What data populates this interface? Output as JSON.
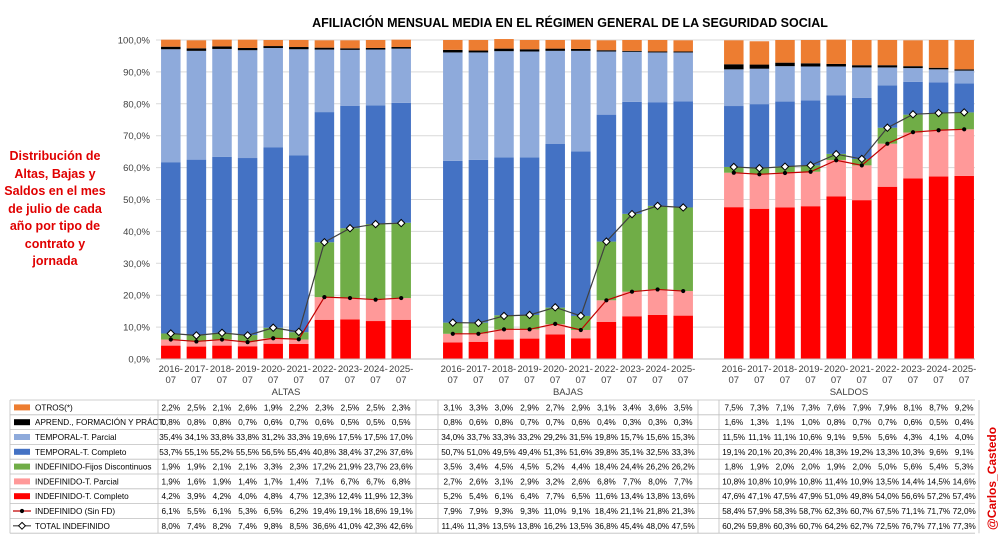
{
  "side_note": "Distribución de Altas, Bajas y Saldos en el mes de julio de cada año por tipo de contrato y jornada",
  "credit": "@Carlos_Castedo",
  "chart_data": {
    "type": "bar",
    "stacked": true,
    "percent_stacked": true,
    "title": "AFILIACIÓN MENSUAL MEDIA EN EL RÉGIMEN GENERAL DE LA SEGURIDAD SOCIAL",
    "ylim": [
      0,
      100
    ],
    "yticks": [
      "0,0%",
      "10,0%",
      "20,0%",
      "30,0%",
      "40,0%",
      "50,0%",
      "60,0%",
      "70,0%",
      "80,0%",
      "90,0%",
      "100,0%"
    ],
    "grid": true,
    "legend_position": "table-left",
    "groups": [
      "ALTAS",
      "BAJAS",
      "SALDOS"
    ],
    "categories": [
      "2016-07",
      "2017-07",
      "2018-07",
      "2019-07",
      "2020-07",
      "2021-07",
      "2022-07",
      "2023-07",
      "2024-07",
      "2025-07"
    ],
    "stack_series": [
      {
        "key": "completo",
        "name": "INDEFINIDO-T. Completo",
        "color": "#ff0000",
        "values": [
          [
            4.2,
            3.9,
            4.2,
            4.0,
            4.8,
            4.7,
            12.3,
            12.4,
            11.9,
            12.3
          ],
          [
            5.2,
            5.4,
            6.1,
            6.4,
            7.7,
            6.5,
            11.6,
            13.4,
            13.8,
            13.6
          ],
          [
            47.6,
            47.1,
            47.5,
            47.9,
            51.0,
            49.8,
            54.0,
            56.6,
            57.2,
            57.4
          ]
        ]
      },
      {
        "key": "parcial",
        "name": "INDEFINIDO-T. Parcial",
        "color": "#ff9999",
        "values": [
          [
            1.9,
            1.6,
            1.9,
            1.4,
            1.7,
            1.4,
            7.1,
            6.7,
            6.7,
            6.8
          ],
          [
            2.7,
            2.6,
            3.1,
            2.9,
            3.2,
            2.6,
            6.8,
            7.7,
            8.0,
            7.7
          ],
          [
            10.8,
            10.8,
            10.9,
            10.8,
            11.4,
            10.9,
            13.5,
            14.4,
            14.5,
            14.6
          ]
        ]
      },
      {
        "key": "fijos",
        "name": "INDEFINIDO-Fijos Discontinuos",
        "color": "#70ad47",
        "values": [
          [
            1.9,
            1.9,
            2.1,
            2.1,
            3.3,
            2.3,
            17.2,
            21.9,
            23.7,
            23.6
          ],
          [
            3.5,
            3.4,
            4.5,
            4.5,
            5.2,
            4.4,
            18.4,
            24.4,
            26.2,
            26.2
          ],
          [
            1.8,
            1.9,
            2.0,
            2.0,
            1.9,
            2.0,
            5.0,
            5.6,
            5.4,
            5.3
          ]
        ]
      },
      {
        "key": "tcompleto",
        "name": "TEMPORAL-T. Completo",
        "color": "#4472c4",
        "values": [
          [
            53.7,
            55.1,
            55.2,
            55.5,
            56.5,
            55.4,
            40.8,
            38.4,
            37.2,
            37.6
          ],
          [
            50.7,
            51.0,
            49.5,
            49.4,
            51.3,
            51.6,
            39.8,
            35.1,
            32.5,
            33.3
          ],
          [
            19.1,
            20.1,
            20.3,
            20.4,
            18.3,
            19.2,
            13.3,
            10.3,
            9.6,
            9.1
          ]
        ]
      },
      {
        "key": "tparcial",
        "name": "TEMPORAL-T. Parcial",
        "color": "#8eaadb",
        "values": [
          [
            35.4,
            34.1,
            33.8,
            33.8,
            31.2,
            33.3,
            19.6,
            17.5,
            17.5,
            17.0
          ],
          [
            34.0,
            33.7,
            33.3,
            33.2,
            29.2,
            31.5,
            19.8,
            15.7,
            15.6,
            15.3
          ],
          [
            11.5,
            11.1,
            11.1,
            10.6,
            9.1,
            9.5,
            5.6,
            4.3,
            4.1,
            4.0
          ]
        ]
      },
      {
        "key": "aprend",
        "name": "APREND., FORMACIÓN Y PRÁCT.",
        "color": "#000000",
        "values": [
          [
            0.8,
            0.8,
            0.8,
            0.7,
            0.6,
            0.7,
            0.6,
            0.5,
            0.5,
            0.5
          ],
          [
            0.8,
            0.6,
            0.8,
            0.7,
            0.7,
            0.6,
            0.4,
            0.3,
            0.3,
            0.3
          ],
          [
            1.6,
            1.3,
            1.1,
            1.0,
            0.8,
            0.7,
            0.7,
            0.6,
            0.5,
            0.4
          ]
        ]
      },
      {
        "key": "otros",
        "name": "OTROS(*)",
        "color": "#ed7d31",
        "values": [
          [
            2.2,
            2.5,
            2.1,
            2.6,
            1.9,
            2.2,
            2.3,
            2.5,
            2.5,
            2.3
          ],
          [
            3.1,
            3.3,
            3.0,
            2.9,
            2.7,
            2.9,
            3.1,
            3.4,
            3.6,
            3.5
          ],
          [
            7.5,
            7.3,
            7.1,
            7.3,
            7.6,
            7.9,
            7.9,
            8.1,
            8.7,
            9.2
          ]
        ]
      }
    ],
    "line_series": [
      {
        "key": "sinfd",
        "name": "INDEFINIDO (Sin FD)",
        "color": "#c00000",
        "values": [
          [
            6.1,
            5.5,
            6.1,
            5.3,
            6.5,
            6.2,
            19.4,
            19.1,
            18.6,
            19.1
          ],
          [
            7.9,
            7.9,
            9.3,
            9.3,
            11.0,
            9.1,
            18.4,
            21.1,
            21.8,
            21.3
          ],
          [
            58.4,
            57.9,
            58.3,
            58.7,
            62.3,
            60.7,
            67.5,
            71.1,
            71.7,
            72.0
          ]
        ]
      },
      {
        "key": "total",
        "name": "TOTAL INDEFINIDO",
        "color": "#404040",
        "values": [
          [
            8.0,
            7.4,
            8.2,
            7.4,
            9.8,
            8.5,
            36.6,
            41.0,
            42.3,
            42.6
          ],
          [
            11.4,
            11.3,
            13.5,
            13.8,
            16.2,
            13.5,
            36.8,
            45.4,
            48.0,
            47.5
          ],
          [
            60.2,
            59.8,
            60.3,
            60.7,
            64.2,
            62.7,
            72.5,
            76.7,
            77.1,
            77.3
          ]
        ]
      }
    ],
    "table_rows": [
      {
        "key": "otros",
        "label": "OTROS(*)",
        "marker": "bar",
        "cells": [
          [
            "2,2%",
            "2,5%",
            "2,1%",
            "2,6%",
            "1,9%",
            "2,2%",
            "2,3%",
            "2,5%",
            "2,5%",
            "2,3%"
          ],
          [
            "3,1%",
            "3,3%",
            "3,0%",
            "2,9%",
            "2,7%",
            "2,9%",
            "3,1%",
            "3,4%",
            "3,6%",
            "3,5%"
          ],
          [
            "7,5%",
            "7,3%",
            "7,1%",
            "7,3%",
            "7,6%",
            "7,9%",
            "7,9%",
            "8,1%",
            "8,7%",
            "9,2%"
          ]
        ]
      },
      {
        "key": "aprend",
        "label": "APREND., FORMACIÓN Y PRÁCT.",
        "marker": "bar",
        "cells": [
          [
            "0,8%",
            "0,8%",
            "0,8%",
            "0,7%",
            "0,6%",
            "0,7%",
            "0,6%",
            "0,5%",
            "0,5%",
            "0,5%"
          ],
          [
            "0,8%",
            "0,6%",
            "0,8%",
            "0,7%",
            "0,7%",
            "0,6%",
            "0,4%",
            "0,3%",
            "0,3%",
            "0,3%"
          ],
          [
            "1,6%",
            "1,3%",
            "1,1%",
            "1,0%",
            "0,8%",
            "0,7%",
            "0,7%",
            "0,6%",
            "0,5%",
            "0,4%"
          ]
        ]
      },
      {
        "key": "tparcial",
        "label": "TEMPORAL-T. Parcial",
        "marker": "bar",
        "cells": [
          [
            "35,4%",
            "34,1%",
            "33,8%",
            "33,8%",
            "31,2%",
            "33,3%",
            "19,6%",
            "17,5%",
            "17,5%",
            "17,0%"
          ],
          [
            "34,0%",
            "33,7%",
            "33,3%",
            "33,2%",
            "29,2%",
            "31,5%",
            "19,8%",
            "15,7%",
            "15,6%",
            "15,3%"
          ],
          [
            "11,5%",
            "11,1%",
            "11,1%",
            "10,6%",
            "9,1%",
            "9,5%",
            "5,6%",
            "4,3%",
            "4,1%",
            "4,0%"
          ]
        ]
      },
      {
        "key": "tcompleto",
        "label": "TEMPORAL-T. Completo",
        "marker": "bar",
        "cells": [
          [
            "53,7%",
            "55,1%",
            "55,2%",
            "55,5%",
            "56,5%",
            "55,4%",
            "40,8%",
            "38,4%",
            "37,2%",
            "37,6%"
          ],
          [
            "50,7%",
            "51,0%",
            "49,5%",
            "49,4%",
            "51,3%",
            "51,6%",
            "39,8%",
            "35,1%",
            "32,5%",
            "33,3%"
          ],
          [
            "19,1%",
            "20,1%",
            "20,3%",
            "20,4%",
            "18,3%",
            "19,2%",
            "13,3%",
            "10,3%",
            "9,6%",
            "9,1%"
          ]
        ]
      },
      {
        "key": "fijos",
        "label": "INDEFINIDO-Fijos Discontinuos",
        "marker": "bar",
        "cells": [
          [
            "1,9%",
            "1,9%",
            "2,1%",
            "2,1%",
            "3,3%",
            "2,3%",
            "17,2%",
            "21,9%",
            "23,7%",
            "23,6%"
          ],
          [
            "3,5%",
            "3,4%",
            "4,5%",
            "4,5%",
            "5,2%",
            "4,4%",
            "18,4%",
            "24,4%",
            "26,2%",
            "26,2%"
          ],
          [
            "1,8%",
            "1,9%",
            "2,0%",
            "2,0%",
            "1,9%",
            "2,0%",
            "5,0%",
            "5,6%",
            "5,4%",
            "5,3%"
          ]
        ]
      },
      {
        "key": "parcial",
        "label": "INDEFINIDO-T. Parcial",
        "marker": "bar",
        "cells": [
          [
            "1,9%",
            "1,6%",
            "1,9%",
            "1,4%",
            "1,7%",
            "1,4%",
            "7,1%",
            "6,7%",
            "6,7%",
            "6,8%"
          ],
          [
            "2,7%",
            "2,6%",
            "3,1%",
            "2,9%",
            "3,2%",
            "2,6%",
            "6,8%",
            "7,7%",
            "8,0%",
            "7,7%"
          ],
          [
            "10,8%",
            "10,8%",
            "10,9%",
            "10,8%",
            "11,4%",
            "10,9%",
            "13,5%",
            "14,4%",
            "14,5%",
            "14,6%"
          ]
        ]
      },
      {
        "key": "completo",
        "label": "INDEFINIDO-T. Completo",
        "marker": "bar",
        "cells": [
          [
            "4,2%",
            "3,9%",
            "4,2%",
            "4,0%",
            "4,8%",
            "4,7%",
            "12,3%",
            "12,4%",
            "11,9%",
            "12,3%"
          ],
          [
            "5,2%",
            "5,4%",
            "6,1%",
            "6,4%",
            "7,7%",
            "6,5%",
            "11,6%",
            "13,4%",
            "13,8%",
            "13,6%"
          ],
          [
            "47,6%",
            "47,1%",
            "47,5%",
            "47,9%",
            "51,0%",
            "49,8%",
            "54,0%",
            "56,6%",
            "57,2%",
            "57,4%"
          ]
        ]
      },
      {
        "key": "sinfd",
        "label": "INDEFINIDO (Sin FD)",
        "marker": "line-red",
        "cells": [
          [
            "6,1%",
            "5,5%",
            "6,1%",
            "5,3%",
            "6,5%",
            "6,2%",
            "19,4%",
            "19,1%",
            "18,6%",
            "19,1%"
          ],
          [
            "7,9%",
            "7,9%",
            "9,3%",
            "9,3%",
            "11,0%",
            "9,1%",
            "18,4%",
            "21,1%",
            "21,8%",
            "21,3%"
          ],
          [
            "58,4%",
            "57,9%",
            "58,3%",
            "58,7%",
            "62,3%",
            "60,7%",
            "67,5%",
            "71,1%",
            "71,7%",
            "72,0%"
          ]
        ]
      },
      {
        "key": "total",
        "label": "TOTAL INDEFINIDO",
        "marker": "line-white",
        "cells": [
          [
            "8,0%",
            "7,4%",
            "8,2%",
            "7,4%",
            "9,8%",
            "8,5%",
            "36,6%",
            "41,0%",
            "42,3%",
            "42,6%"
          ],
          [
            "11,4%",
            "11,3%",
            "13,5%",
            "13,8%",
            "16,2%",
            "13,5%",
            "36,8%",
            "45,4%",
            "48,0%",
            "47,5%"
          ],
          [
            "60,2%",
            "59,8%",
            "60,3%",
            "60,7%",
            "64,2%",
            "62,7%",
            "72,5%",
            "76,7%",
            "77,1%",
            "77,3%"
          ]
        ]
      }
    ]
  }
}
